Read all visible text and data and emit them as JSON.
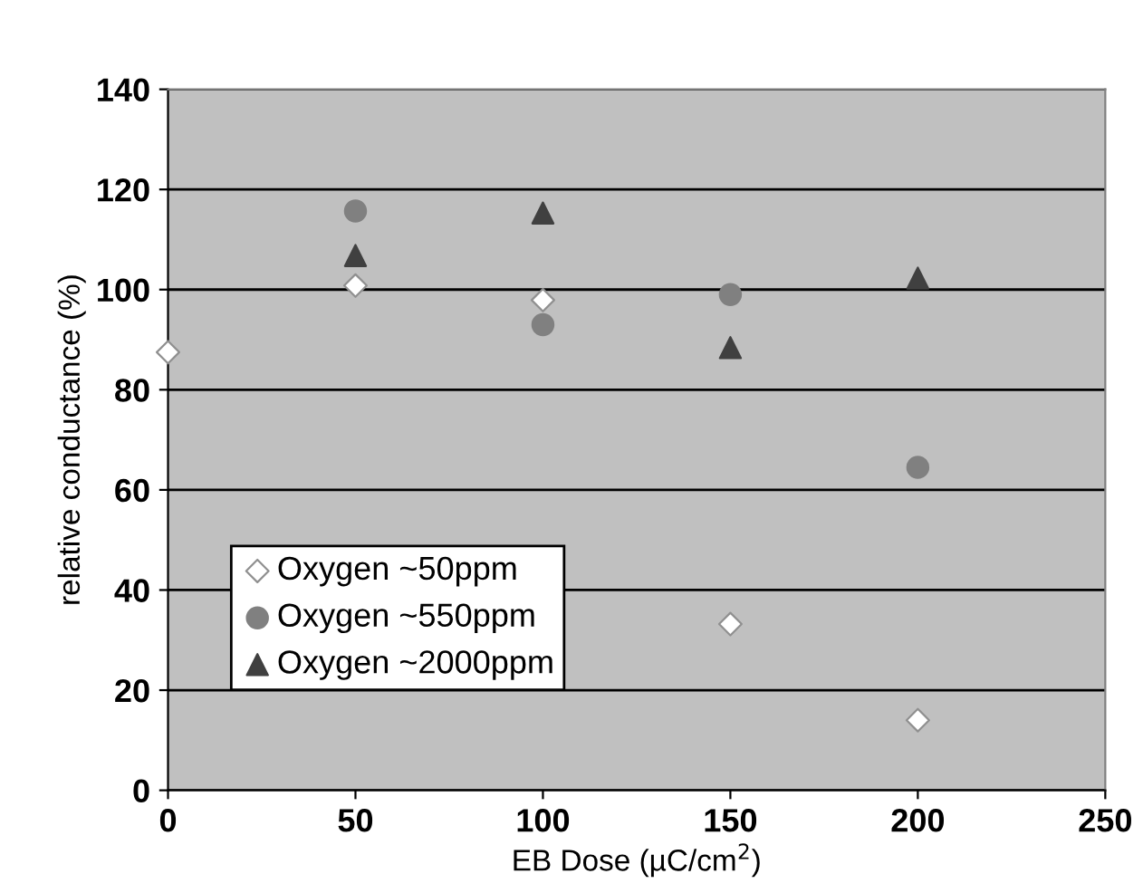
{
  "chart_data": {
    "type": "scatter",
    "xlabel": "EB Dose (µC/cm$^{2}$)",
    "ylabel": "relative conductance (%)",
    "series": [
      {
        "name": "Oxygen ~50ppm",
        "color": "#ffffff",
        "marker": "diamond",
        "x": [
          0,
          50,
          100,
          150,
          200
        ],
        "values": [
          87.5,
          100.8,
          97.9,
          33.2,
          14
        ]
      },
      {
        "name": "Oxygen ~550ppm",
        "color": "#808080",
        "marker": "circle",
        "x": [
          50,
          100,
          150,
          200
        ],
        "values": [
          115.7,
          93,
          99,
          64.5
        ]
      },
      {
        "name": "Oxygen ~2000ppm",
        "color": "#404040",
        "marker": "triangle",
        "x": [
          50,
          100,
          150,
          200
        ],
        "values": [
          106.8,
          115.3,
          88.4,
          102.3
        ]
      }
    ],
    "xlim": [
      0,
      250
    ],
    "xticks": [
      0,
      50,
      100,
      150,
      200,
      250
    ],
    "ylim": [
      0,
      140
    ],
    "yticks": [
      0,
      20,
      40,
      60,
      80,
      100,
      120,
      140
    ],
    "grid": "y",
    "legend": "lower left"
  }
}
